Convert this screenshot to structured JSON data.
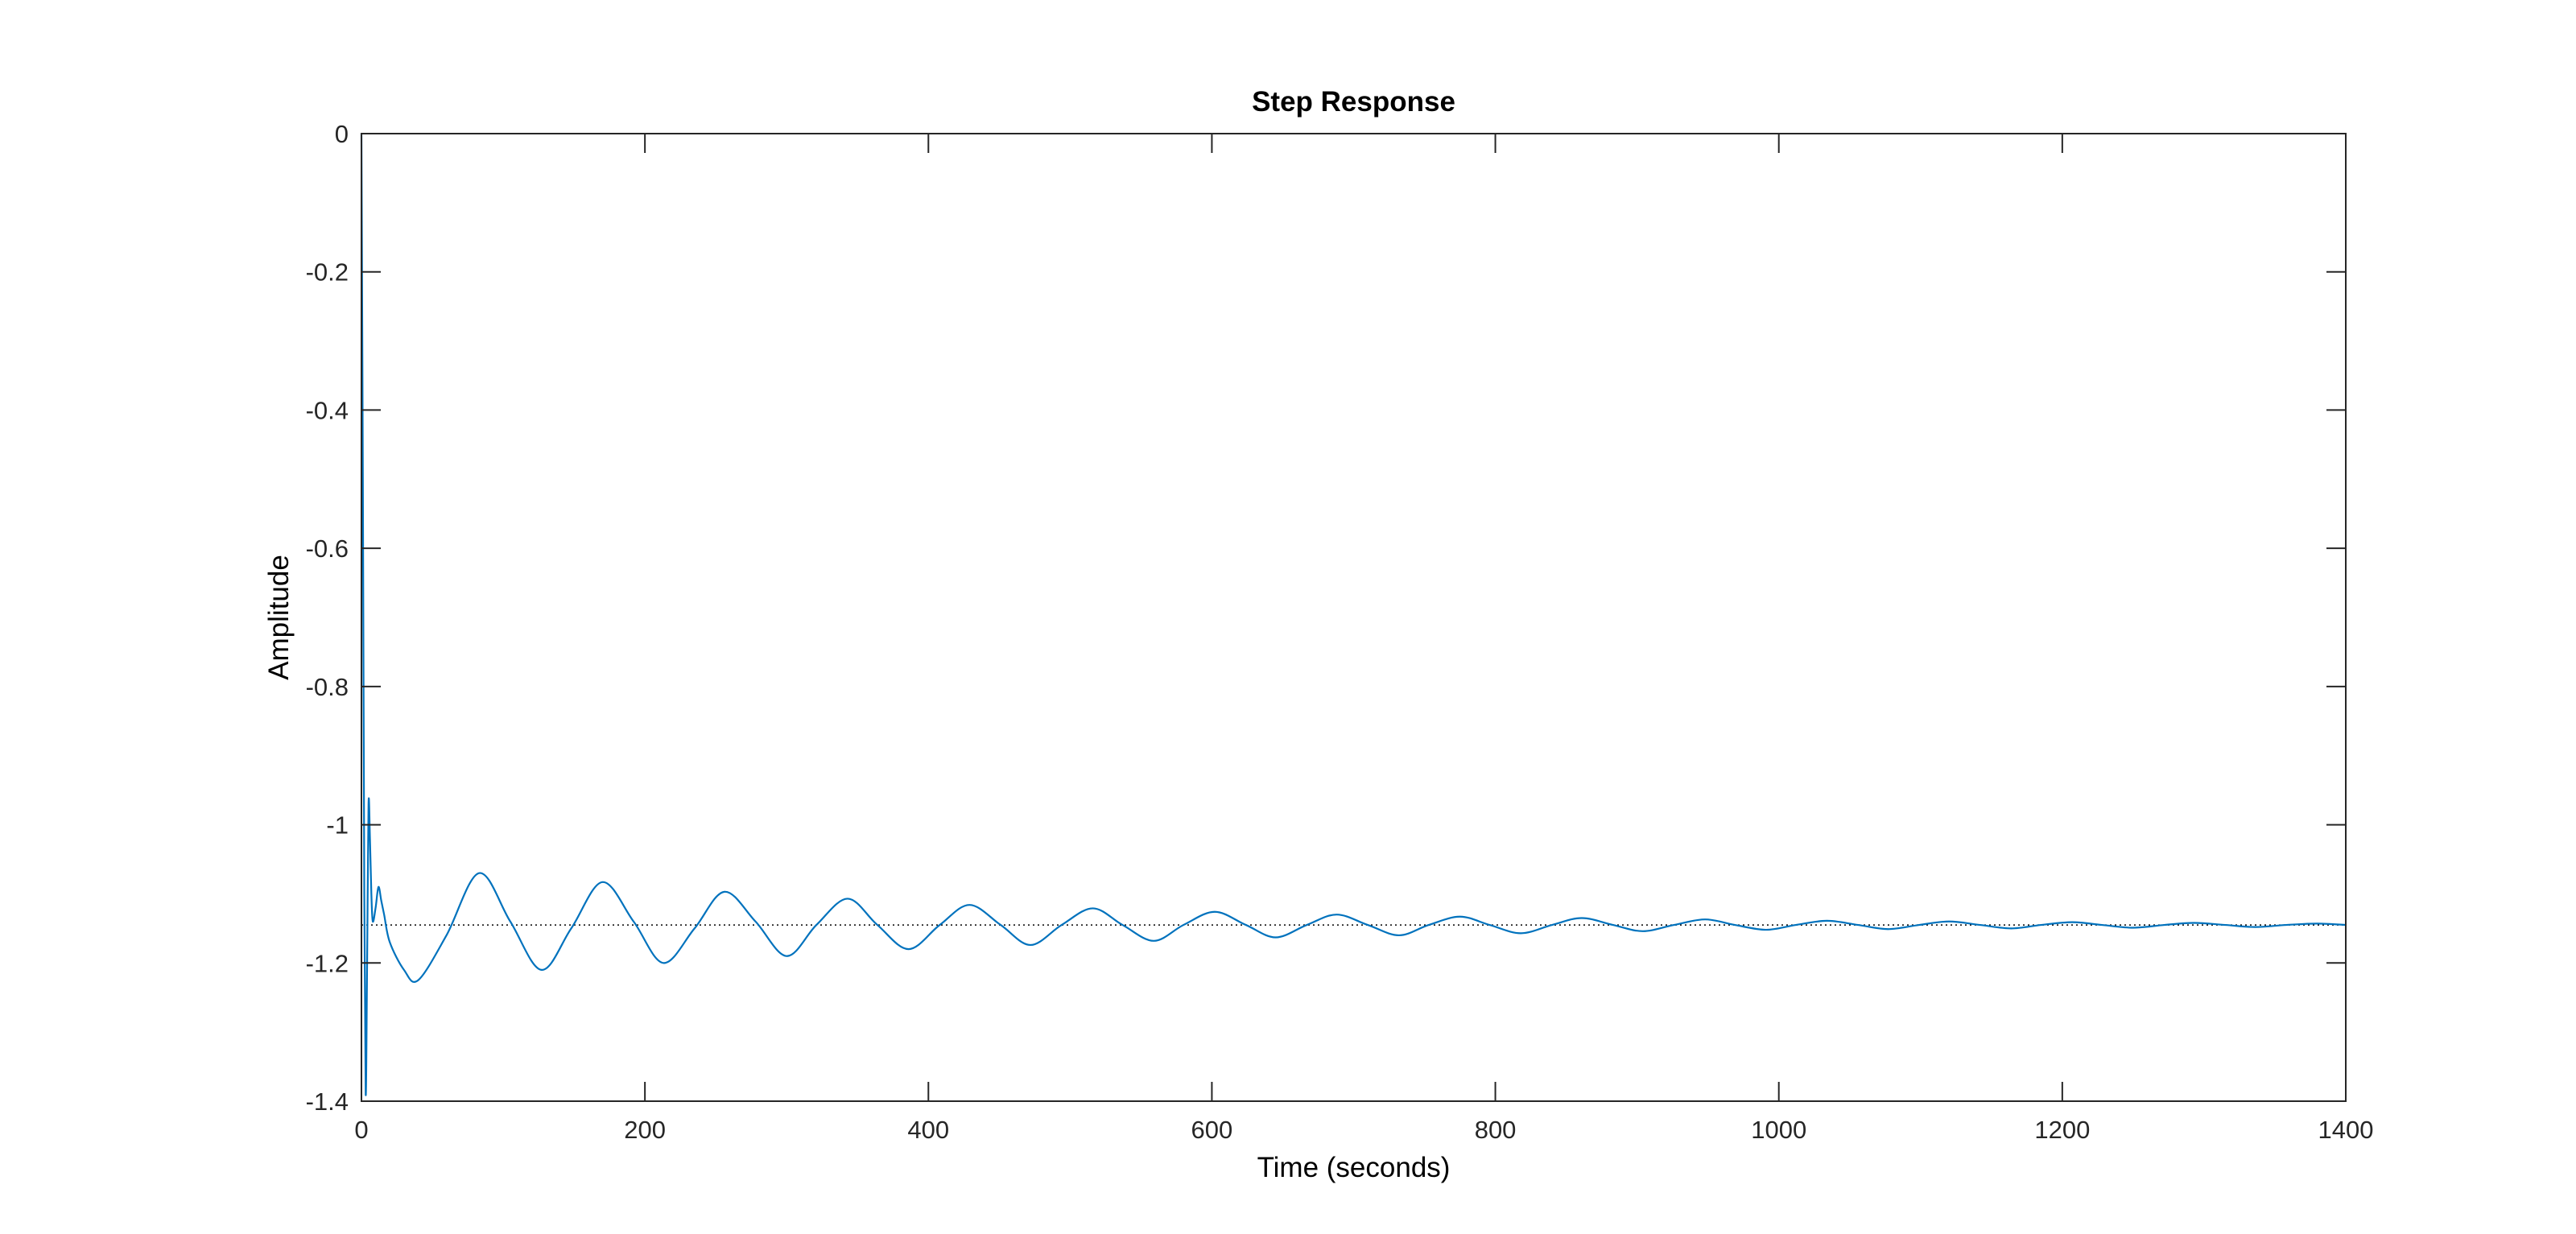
{
  "chart_data": {
    "type": "line",
    "title": "Step Response",
    "xlabel": "Time (seconds)",
    "ylabel": "Amplitude",
    "xlim": [
      0,
      1400
    ],
    "ylim": [
      -1.4,
      0
    ],
    "xticks": [
      0,
      200,
      400,
      600,
      800,
      1000,
      1200,
      1400
    ],
    "yticks": [
      0,
      -0.2,
      -0.4,
      -0.6,
      -0.8,
      -1,
      -1.2,
      -1.4
    ],
    "xtick_labels": [
      "0",
      "200",
      "400",
      "600",
      "800",
      "1000",
      "1200",
      "1400"
    ],
    "ytick_labels": [
      "0",
      "-0.2",
      "-0.4",
      "-0.6",
      "-0.8",
      "-1",
      "-1.2",
      "-1.4"
    ],
    "grid": false,
    "steady_state": -1.145,
    "series": [
      {
        "color": "#0072BD",
        "x": [
          0,
          1,
          2,
          3,
          4,
          5,
          6,
          7,
          8,
          10,
          12,
          14,
          16,
          20,
          30,
          40,
          60,
          83,
          105,
          127,
          148,
          170,
          192,
          213,
          235,
          256,
          278,
          300,
          321,
          343,
          364,
          386,
          408,
          429,
          451,
          472,
          494,
          516,
          537,
          559,
          580,
          602,
          624,
          645,
          667,
          688,
          710,
          732,
          753,
          775,
          796,
          818,
          840,
          861,
          883,
          904,
          926,
          948,
          969,
          991,
          1012,
          1034,
          1056,
          1077,
          1099,
          1120,
          1142,
          1164,
          1185,
          1207,
          1228,
          1250,
          1272,
          1293,
          1315,
          1336,
          1358,
          1380,
          1400
        ],
        "y": [
          0,
          -0.5,
          -1.1,
          -1.39,
          -1.2,
          -0.97,
          -1.02,
          -1.1,
          -1.14,
          -1.12,
          -1.09,
          -1.11,
          -1.13,
          -1.17,
          -1.21,
          -1.225,
          -1.16,
          -1.07,
          -1.14,
          -1.21,
          -1.15,
          -1.083,
          -1.14,
          -1.2,
          -1.15,
          -1.097,
          -1.14,
          -1.19,
          -1.145,
          -1.107,
          -1.145,
          -1.18,
          -1.145,
          -1.116,
          -1.145,
          -1.174,
          -1.145,
          -1.121,
          -1.145,
          -1.168,
          -1.145,
          -1.126,
          -1.145,
          -1.163,
          -1.145,
          -1.13,
          -1.145,
          -1.16,
          -1.145,
          -1.133,
          -1.145,
          -1.157,
          -1.145,
          -1.135,
          -1.145,
          -1.154,
          -1.145,
          -1.137,
          -1.145,
          -1.152,
          -1.145,
          -1.139,
          -1.145,
          -1.151,
          -1.145,
          -1.14,
          -1.145,
          -1.15,
          -1.145,
          -1.141,
          -1.145,
          -1.149,
          -1.145,
          -1.142,
          -1.145,
          -1.148,
          -1.145,
          -1.143,
          -1.145
        ]
      }
    ]
  }
}
